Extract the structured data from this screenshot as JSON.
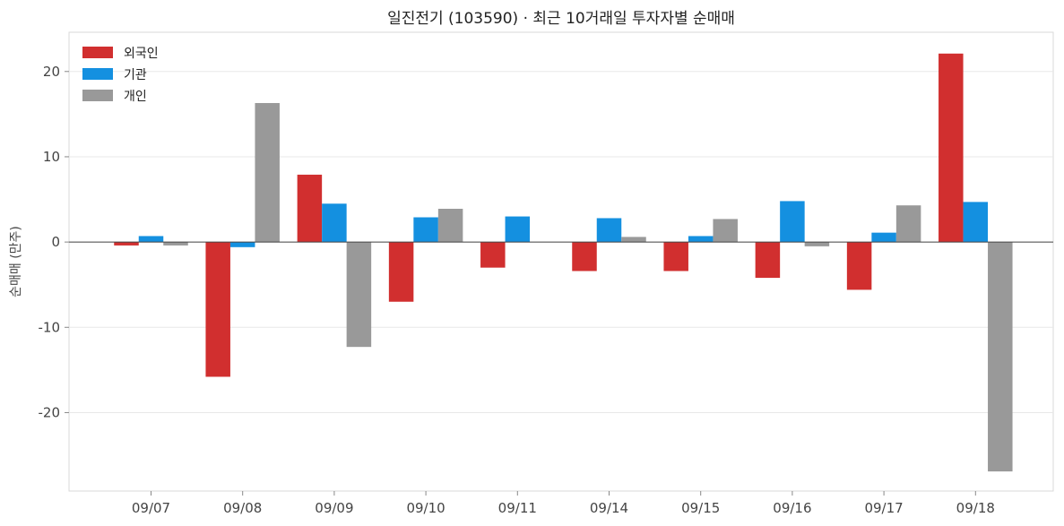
{
  "chart_data": {
    "type": "bar",
    "title": "일진전기 (103590) · 최근 10거래일 투자자별 순매매",
    "xlabel": "",
    "ylabel": "순매매 (만주)",
    "categories": [
      "09/07",
      "09/08",
      "09/09",
      "09/10",
      "09/11",
      "09/14",
      "09/15",
      "09/16",
      "09/17",
      "09/18"
    ],
    "series": [
      {
        "name": "외국인",
        "color": "#d12f2f",
        "values": [
          -0.4,
          -15.8,
          7.9,
          -7.0,
          -3.0,
          -3.4,
          -3.4,
          -4.2,
          -5.6,
          22.1
        ]
      },
      {
        "name": "기관",
        "color": "#1490e0",
        "values": [
          0.7,
          -0.6,
          4.5,
          2.9,
          3.0,
          2.8,
          0.7,
          4.8,
          1.1,
          4.7
        ]
      },
      {
        "name": "개인",
        "color": "#999999",
        "values": [
          -0.4,
          16.3,
          -12.3,
          3.9,
          0.0,
          0.6,
          2.7,
          -0.5,
          4.3,
          -26.9
        ]
      }
    ],
    "ylim": [
      -29.2,
      24.6
    ],
    "yticks": [
      -20,
      -10,
      0,
      10,
      20
    ],
    "grid": true,
    "legend_position": "top-left"
  }
}
